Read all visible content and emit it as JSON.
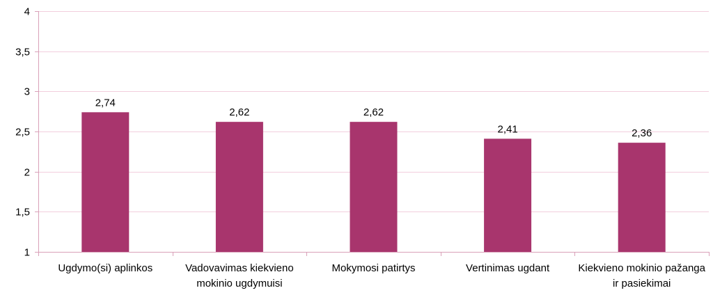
{
  "chart_data": {
    "type": "bar",
    "title": "",
    "xlabel": "",
    "ylabel": "",
    "categories": [
      "Ugdymo(si) aplinkos",
      "Vadovavimas kiekvieno mokinio ugdymuisi",
      "Mokymosi patirtys",
      "Vertinimas ugdant",
      "Kiekvieno mokinio pažanga ir pasiekimai"
    ],
    "category_lines": [
      [
        "Ugdymo(si) aplinkos"
      ],
      [
        "Vadovavimas kiekvieno",
        "mokinio ugdymuisi"
      ],
      [
        "Mokymosi patirtys"
      ],
      [
        "Vertinimas ugdant"
      ],
      [
        "Kiekvieno mokinio pažanga",
        "ir pasiekimai"
      ]
    ],
    "values": [
      2.74,
      2.62,
      2.62,
      2.41,
      2.36
    ],
    "value_labels": [
      "2,74",
      "2,62",
      "2,62",
      "2,41",
      "2,36"
    ],
    "ylim": [
      1,
      4
    ],
    "yticks": [
      1,
      1.5,
      2,
      2.5,
      3,
      3.5,
      4
    ],
    "ytick_labels": [
      "1",
      "1,5",
      "2",
      "2,5",
      "3",
      "3,5",
      "4"
    ],
    "grid": true,
    "legend": "none",
    "colors": {
      "bar": "#A8356D",
      "grid": "#F2CEDD",
      "axis": "#D9A0B8"
    }
  }
}
